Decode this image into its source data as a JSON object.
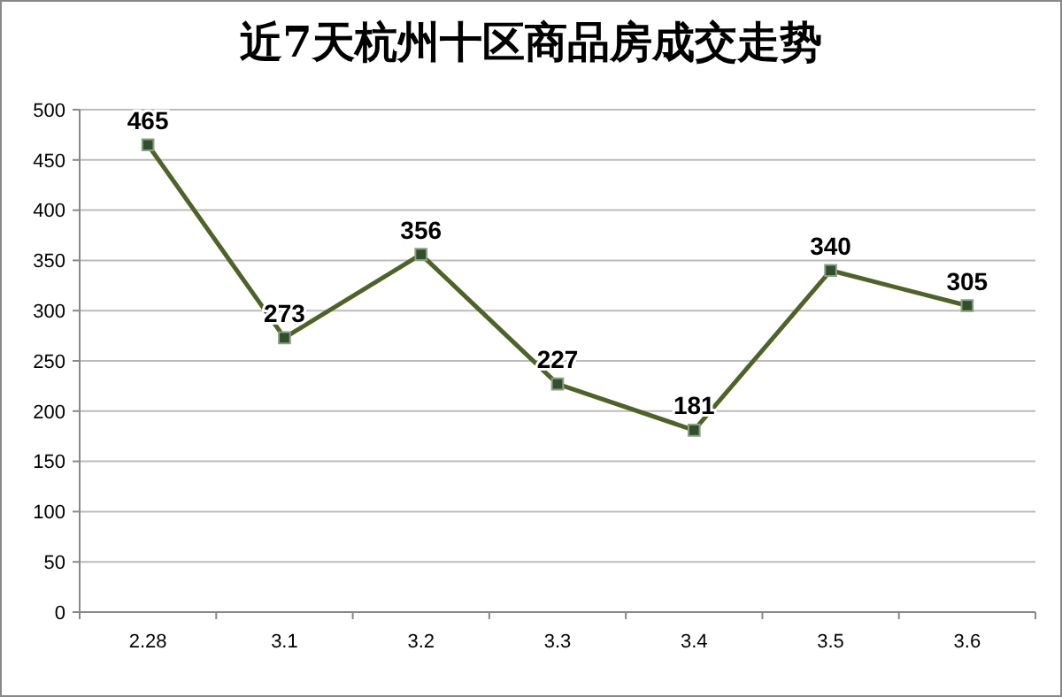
{
  "chart_data": {
    "type": "line",
    "title": "近7天杭州十区商品房成交走势",
    "categories": [
      "2.28",
      "3.1",
      "3.2",
      "3.3",
      "3.4",
      "3.5",
      "3.6"
    ],
    "series": [
      {
        "color": "#4f6228",
        "values": [
          465,
          273,
          356,
          227,
          181,
          340,
          305
        ]
      }
    ],
    "ylim": [
      0,
      500
    ],
    "yticks": [
      0,
      50,
      100,
      150,
      200,
      250,
      300,
      350,
      400,
      450,
      500
    ],
    "grid": "y",
    "marker": "square",
    "data_labels": true
  }
}
